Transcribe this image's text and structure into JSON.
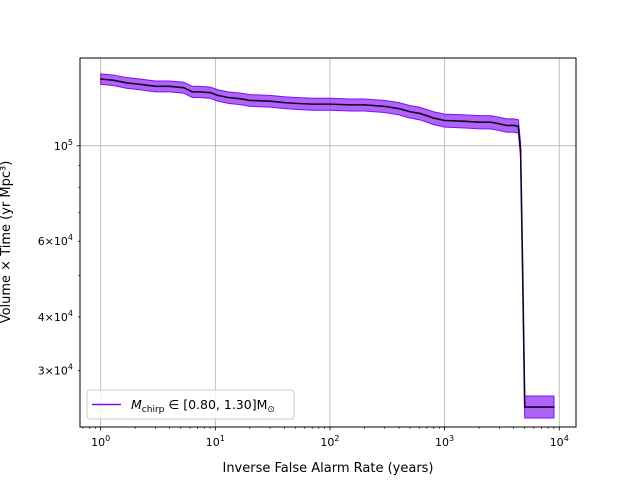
{
  "chart_data": {
    "type": "line",
    "title": "",
    "xlabel": "Inverse False Alarm Rate (years)",
    "ylabel": "Volume × Time (yr Mpc³)",
    "xscale": "log",
    "yscale": "log",
    "xlim": [
      0.66,
      14000
    ],
    "ylim": [
      22200,
      160000
    ],
    "grid": true,
    "legend_location": "lower-left",
    "x_ticks": [
      {
        "value": 1,
        "base": "10",
        "exp": "0"
      },
      {
        "value": 10,
        "base": "10",
        "exp": "1"
      },
      {
        "value": 100,
        "base": "10",
        "exp": "2"
      },
      {
        "value": 1000,
        "base": "10",
        "exp": "3"
      },
      {
        "value": 10000,
        "base": "10",
        "exp": "4"
      }
    ],
    "y_ticks": [
      {
        "value": 30000,
        "mant": "3×",
        "base": "10",
        "exp": "4",
        "major": false
      },
      {
        "value": 40000,
        "mant": "4×",
        "base": "10",
        "exp": "4",
        "major": false
      },
      {
        "value": 60000,
        "mant": "6×",
        "base": "10",
        "exp": "4",
        "major": false
      },
      {
        "value": 100000,
        "mant": "",
        "base": "10",
        "exp": "5",
        "major": true
      }
    ],
    "series": [
      {
        "label_prefix": "M",
        "label_sub": "chirp",
        "label_rest": " ∈ [0.80, 1.30]M",
        "label_sub2": "⊙",
        "color": "#7b12f5",
        "line_color": "#1a0028",
        "band_color": "#9b3cf5",
        "x": [
          1.0,
          1.3,
          1.7,
          2.2,
          3.0,
          4.0,
          5.3,
          6.3,
          7.0,
          9.0,
          10.5,
          13,
          17,
          20,
          30,
          40,
          50,
          70,
          100,
          150,
          200,
          300,
          400,
          500,
          600,
          700,
          800,
          1000,
          1500,
          2000,
          2500,
          3000,
          3500,
          4000,
          4400,
          4600,
          4800,
          5000,
          9000
        ],
        "y": [
          143000,
          142000,
          140000,
          139000,
          137500,
          137500,
          136500,
          133500,
          133500,
          133000,
          131000,
          129500,
          128500,
          127500,
          127000,
          126000,
          125500,
          125000,
          125000,
          124500,
          124500,
          123500,
          122000,
          120000,
          119000,
          117500,
          116000,
          114500,
          114000,
          113500,
          113500,
          112500,
          111500,
          111500,
          111000,
          97500,
          50000,
          24700,
          24700
        ],
        "lower": [
          139000,
          138000,
          136000,
          135000,
          133500,
          133500,
          132500,
          129500,
          129500,
          129000,
          127000,
          125500,
          124500,
          123500,
          123000,
          122000,
          121500,
          121000,
          121000,
          120500,
          120500,
          119500,
          118000,
          116000,
          115000,
          113500,
          112000,
          110500,
          110000,
          109500,
          109500,
          108500,
          107500,
          107500,
          107000,
          94000,
          48000,
          23300,
          23300
        ],
        "upper": [
          147000,
          146000,
          144000,
          143000,
          141500,
          141500,
          140500,
          137500,
          137500,
          137000,
          135000,
          133500,
          132500,
          131500,
          131000,
          130000,
          129500,
          129000,
          129000,
          128500,
          128500,
          127500,
          126000,
          124000,
          123000,
          121500,
          120000,
          118500,
          118000,
          117500,
          117500,
          116500,
          115500,
          115500,
          115000,
          101000,
          52000,
          26200,
          26200
        ]
      }
    ]
  }
}
